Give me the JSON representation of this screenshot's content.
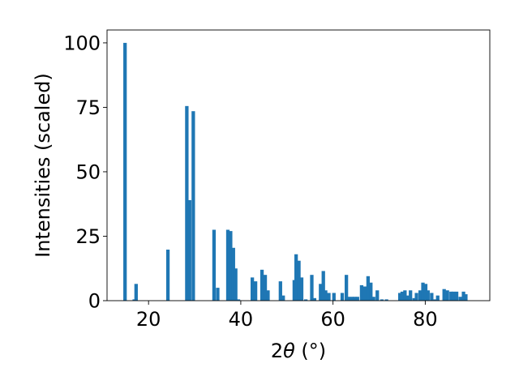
{
  "chart_data": {
    "type": "bar",
    "title": "",
    "xlabel": "2θ (°)",
    "ylabel": "Intensities (scaled)",
    "xlim": [
      11,
      94
    ],
    "ylim": [
      0,
      105
    ],
    "xticks": [
      20,
      40,
      60,
      80
    ],
    "yticks": [
      0,
      25,
      50,
      75,
      100
    ],
    "grid": false,
    "bar_color": "#1f77b4",
    "bar_width": 0.75,
    "series": [
      {
        "x": [
          14.9,
          16.9,
          17.3,
          24.2,
          28.3,
          28.9,
          29.7,
          34.2,
          35.0,
          37.2,
          37.8,
          38.4,
          38.9,
          39.5,
          42.5,
          43.2,
          44.6,
          45.3,
          45.9,
          48.6,
          49.2,
          51.6,
          52.0,
          52.6,
          53.2,
          54.1,
          55.4,
          56.0,
          57.3,
          57.9,
          58.4,
          59.1,
          60.2,
          62.0,
          62.9,
          63.4,
          64.1,
          64.7,
          65.3,
          66.2,
          66.9,
          67.6,
          68.2,
          68.8,
          69.6,
          70.6,
          71.6,
          74.5,
          75.0,
          75.6,
          76.1,
          76.8,
          77.6,
          78.1,
          78.9,
          79.5,
          80.1,
          80.6,
          81.4,
          82.1,
          82.7,
          84.1,
          84.8,
          85.6,
          86.1,
          86.8,
          87.6,
          88.3,
          88.8
        ],
        "values": [
          100,
          0.5,
          6.5,
          19.8,
          75.5,
          39,
          73.5,
          27.5,
          5,
          27.5,
          27,
          20.5,
          12.5,
          0.5,
          9,
          7.5,
          12,
          10,
          4,
          7.5,
          2,
          8,
          18,
          15.5,
          9,
          0.5,
          10,
          1,
          6.5,
          11.5,
          4,
          3,
          3,
          3,
          10,
          1.5,
          1.5,
          1.5,
          1.5,
          6,
          5.5,
          9.5,
          7,
          1.5,
          4,
          0.5,
          0.5,
          3,
          3.5,
          4,
          2,
          4,
          1,
          3,
          4,
          7,
          6.5,
          4,
          3,
          0.5,
          2,
          4.5,
          4,
          3.5,
          3.5,
          3.5,
          1.5,
          3.5,
          2.5
        ]
      }
    ]
  }
}
